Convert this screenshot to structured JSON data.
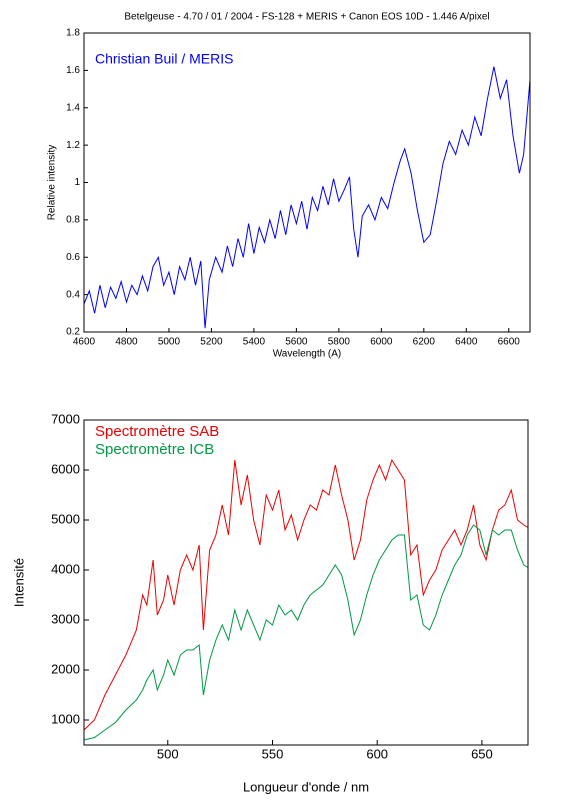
{
  "chart_data": [
    {
      "type": "line",
      "title": "Betelgeuse - 4.70 / 01 / 2004 - FS-128 + MERIS + Canon EOS 10D - 1.446 A/pixel",
      "x_label": "Wavelength (A)",
      "y_label": "Relative intensity",
      "xlim": [
        4600,
        6700
      ],
      "ylim": [
        0.2,
        1.8
      ],
      "xticks": [
        4600,
        4800,
        5000,
        5200,
        5400,
        5600,
        5800,
        6000,
        6200,
        6400,
        6600
      ],
      "yticks": [
        0.2,
        0.4,
        0.6,
        0.8,
        1,
        1.2,
        1.4,
        1.6,
        1.8
      ],
      "x": [
        4600,
        4625,
        4650,
        4675,
        4700,
        4725,
        4750,
        4775,
        4800,
        4825,
        4850,
        4875,
        4900,
        4925,
        4950,
        4975,
        5000,
        5025,
        5050,
        5075,
        5100,
        5125,
        5150,
        5170,
        5190,
        5220,
        5250,
        5275,
        5300,
        5325,
        5350,
        5375,
        5400,
        5425,
        5450,
        5475,
        5500,
        5525,
        5550,
        5575,
        5600,
        5625,
        5650,
        5675,
        5700,
        5725,
        5750,
        5775,
        5800,
        5825,
        5850,
        5870,
        5890,
        5910,
        5940,
        5970,
        6000,
        6030,
        6060,
        6090,
        6110,
        6140,
        6170,
        6200,
        6230,
        6260,
        6290,
        6320,
        6350,
        6380,
        6410,
        6440,
        6470,
        6500,
        6530,
        6560,
        6590,
        6620,
        6650,
        6670,
        6700
      ],
      "series": [
        {
          "name": "Christian Buil / MERIS",
          "color": "#0000ff",
          "values": [
            0.35,
            0.42,
            0.3,
            0.45,
            0.33,
            0.44,
            0.38,
            0.47,
            0.36,
            0.45,
            0.4,
            0.5,
            0.42,
            0.55,
            0.6,
            0.45,
            0.52,
            0.4,
            0.55,
            0.48,
            0.6,
            0.45,
            0.58,
            0.22,
            0.48,
            0.6,
            0.52,
            0.66,
            0.55,
            0.7,
            0.6,
            0.78,
            0.62,
            0.76,
            0.68,
            0.8,
            0.7,
            0.85,
            0.72,
            0.88,
            0.78,
            0.9,
            0.75,
            0.92,
            0.85,
            0.98,
            0.88,
            1.02,
            0.9,
            0.96,
            1.03,
            0.75,
            0.6,
            0.82,
            0.88,
            0.8,
            0.92,
            0.86,
            1.0,
            1.12,
            1.18,
            1.05,
            0.85,
            0.68,
            0.72,
            0.9,
            1.1,
            1.22,
            1.15,
            1.28,
            1.2,
            1.35,
            1.25,
            1.45,
            1.62,
            1.45,
            1.55,
            1.25,
            1.05,
            1.15,
            1.55
          ]
        }
      ]
    },
    {
      "type": "line",
      "x_label": "Longueur d'onde / nm",
      "y_label": "Intensité",
      "xlim": [
        460,
        672
      ],
      "ylim": [
        500,
        7000
      ],
      "xticks": [
        500,
        550,
        600,
        650
      ],
      "yticks": [
        1000,
        2000,
        3000,
        4000,
        5000,
        6000,
        7000
      ],
      "x": [
        460,
        465,
        470,
        475,
        480,
        485,
        488,
        490,
        493,
        495,
        498,
        500,
        503,
        506,
        509,
        512,
        515,
        517,
        520,
        523,
        526,
        529,
        532,
        535,
        538,
        541,
        544,
        547,
        550,
        553,
        556,
        559,
        562,
        565,
        568,
        571,
        574,
        577,
        580,
        583,
        586,
        589,
        592,
        595,
        598,
        601,
        604,
        607,
        610,
        613,
        616,
        619,
        622,
        625,
        628,
        631,
        634,
        637,
        640,
        643,
        646,
        649,
        652,
        655,
        658,
        661,
        664,
        667,
        670,
        672
      ],
      "series": [
        {
          "name": "Spectromètre SAB",
          "color": "#ee0000",
          "values": [
            800,
            1000,
            1500,
            1900,
            2300,
            2800,
            3500,
            3300,
            4200,
            3100,
            3400,
            3900,
            3300,
            4000,
            4300,
            4000,
            4500,
            2800,
            4400,
            4700,
            5300,
            4700,
            6200,
            5300,
            5900,
            5000,
            4500,
            5500,
            5200,
            5600,
            4800,
            5100,
            4600,
            5000,
            5300,
            5200,
            5600,
            5500,
            6100,
            5500,
            5000,
            4200,
            4600,
            5400,
            5800,
            6100,
            5800,
            6200,
            6000,
            5800,
            4300,
            4500,
            3500,
            3800,
            4000,
            4400,
            4600,
            4800,
            4500,
            4800,
            5300,
            4500,
            4200,
            4800,
            5200,
            5300,
            5600,
            5000,
            4900,
            4850
          ]
        },
        {
          "name": "Spectromètre ICB",
          "color": "#009944",
          "values": [
            600,
            650,
            800,
            950,
            1200,
            1400,
            1600,
            1800,
            2000,
            1600,
            1900,
            2200,
            1900,
            2300,
            2400,
            2400,
            2500,
            1500,
            2200,
            2600,
            2900,
            2600,
            3200,
            2800,
            3200,
            2900,
            2600,
            3000,
            2900,
            3300,
            3100,
            3200,
            3000,
            3300,
            3500,
            3600,
            3700,
            3900,
            4100,
            3900,
            3400,
            2700,
            3000,
            3500,
            3900,
            4200,
            4400,
            4600,
            4700,
            4700,
            3400,
            3500,
            2900,
            2800,
            3100,
            3500,
            3800,
            4100,
            4300,
            4700,
            4900,
            4800,
            4300,
            4800,
            4700,
            4800,
            4800,
            4400,
            4100,
            4050
          ]
        }
      ]
    }
  ]
}
